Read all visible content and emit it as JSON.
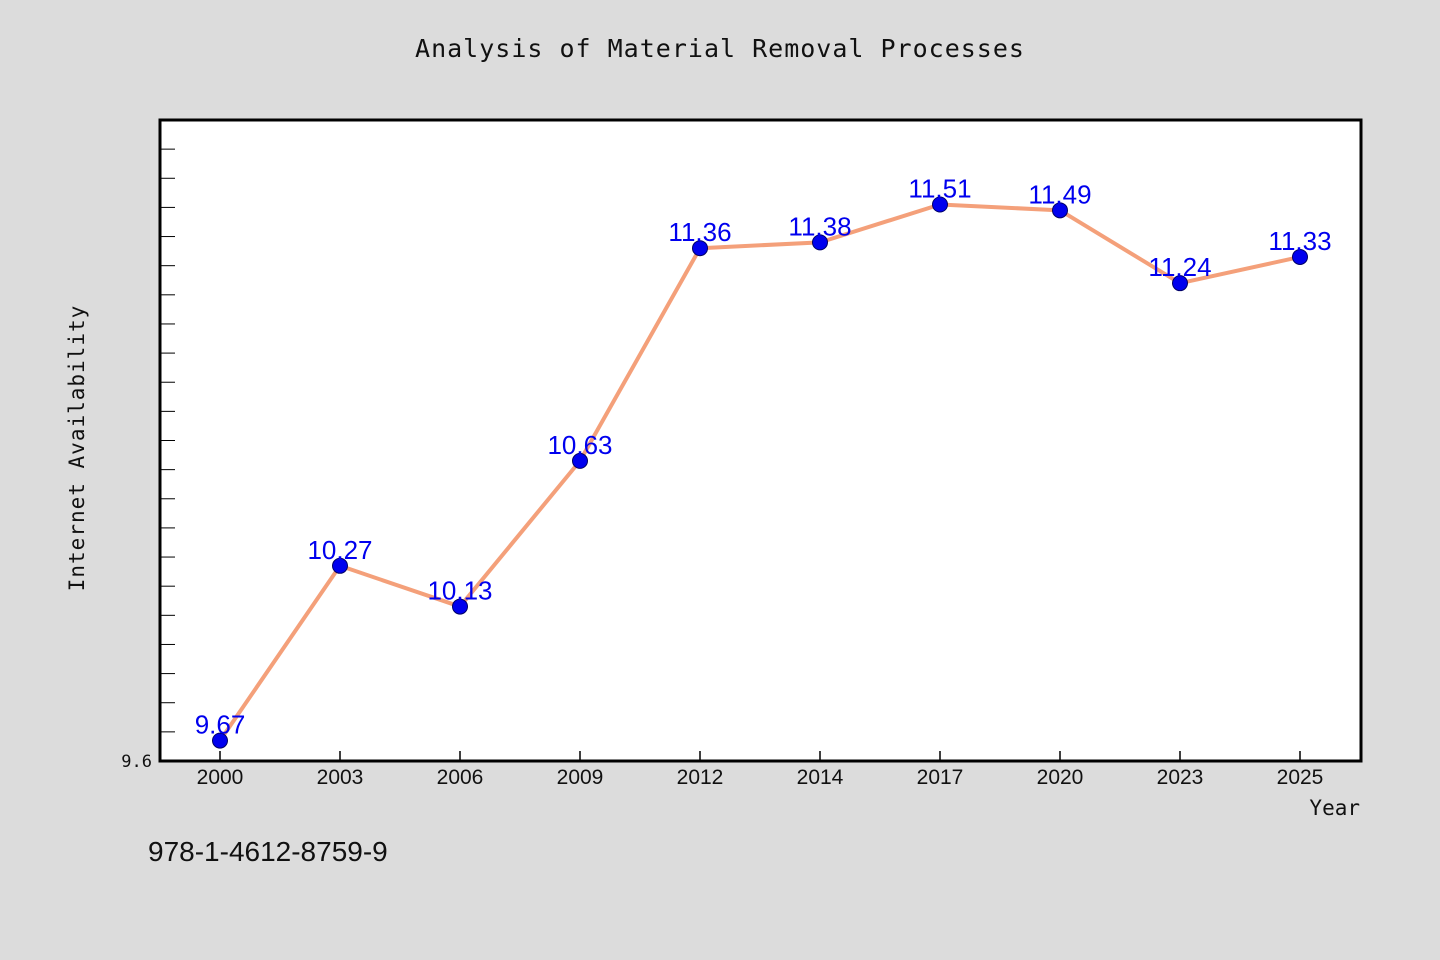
{
  "chart_data": {
    "type": "line",
    "title": "Analysis of Material Removal Processes",
    "xlabel": "Year",
    "ylabel": "Internet Availability",
    "categories": [
      "2000",
      "2003",
      "2006",
      "2009",
      "2012",
      "2014",
      "2017",
      "2020",
      "2023",
      "2025"
    ],
    "series": [
      {
        "values": [
          9.67,
          10.27,
          10.13,
          10.63,
          11.36,
          11.38,
          11.51,
          11.49,
          11.24,
          11.33
        ]
      }
    ],
    "data_labels": [
      "9.67",
      "10.27",
      "10.13",
      "10.63",
      "11.36",
      "11.38",
      "11.51",
      "11.49",
      "11.24",
      "11.33"
    ],
    "ylim": [
      9.6,
      11.8
    ],
    "y_tick_labels_shown": [
      "9.6"
    ],
    "grid": false,
    "legend": "none",
    "colors": {
      "line": "#f4a07a",
      "marker": "#0000ee",
      "data_label": "#0000ee",
      "background": "#dcdcdc",
      "plot_area": "#ffffff"
    }
  },
  "footer": {
    "isbn": "978-1-4612-8759-9"
  }
}
